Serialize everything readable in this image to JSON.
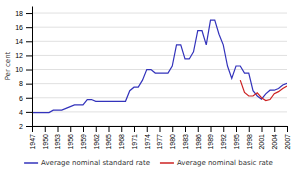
{
  "chart_data": {
    "type": "line",
    "ylabel": "Per cent",
    "series": [
      {
        "name": "Average nominal standard rate",
        "color": "#3333bb",
        "x": [
          1947,
          1948,
          1949,
          1950,
          1951,
          1952,
          1953,
          1954,
          1955,
          1956,
          1957,
          1958,
          1959,
          1960,
          1961,
          1962,
          1963,
          1964,
          1965,
          1966,
          1967,
          1968,
          1969,
          1970,
          1971,
          1972,
          1973,
          1974,
          1975,
          1976,
          1977,
          1978,
          1979,
          1980,
          1981,
          1982,
          1983,
          1984,
          1985,
          1986,
          1987,
          1988,
          1989,
          1990,
          1991,
          1992,
          1993,
          1994,
          1995,
          1996,
          1997,
          1998,
          1999,
          2000,
          2001,
          2002,
          2003,
          2004,
          2005,
          2006,
          2007
        ],
        "values": [
          3.9,
          3.9,
          3.9,
          3.9,
          3.9,
          4.25,
          4.25,
          4.25,
          4.5,
          4.75,
          5.0,
          5.0,
          5.0,
          5.75,
          5.75,
          5.5,
          5.5,
          5.5,
          5.5,
          5.5,
          5.5,
          5.5,
          5.5,
          7.0,
          7.5,
          7.5,
          8.5,
          10.0,
          10.0,
          9.5,
          9.5,
          9.5,
          9.5,
          10.5,
          13.5,
          13.5,
          11.5,
          11.5,
          12.5,
          15.5,
          15.5,
          13.5,
          17.0,
          17.0,
          15.0,
          13.5,
          10.5,
          8.75,
          10.5,
          10.5,
          9.5,
          9.5,
          7.0,
          6.25,
          5.8,
          6.55,
          7.07,
          7.07,
          7.32,
          7.8,
          8.05
        ]
      },
      {
        "name": "Average nominal basic rate",
        "color": "#cc2222",
        "x": [
          1996,
          1997,
          1998,
          1999,
          2000,
          2001,
          2002,
          2003,
          2004,
          2005,
          2006,
          2007
        ],
        "values": [
          8.5,
          6.75,
          6.25,
          6.25,
          6.7,
          6.0,
          5.6,
          5.75,
          6.57,
          6.87,
          7.32,
          7.65
        ]
      }
    ],
    "xlim": [
      1947,
      2007
    ],
    "xticks": [
      1947,
      1950,
      1953,
      1956,
      1959,
      1962,
      1965,
      1968,
      1971,
      1974,
      1977,
      1980,
      1983,
      1986,
      1989,
      1992,
      1995,
      1998,
      2001,
      2004,
      2007
    ],
    "ylim": [
      2,
      19
    ],
    "yticks": [
      2,
      4,
      6,
      8,
      10,
      12,
      14,
      16,
      18
    ],
    "grid": "y",
    "legend": "bottom"
  }
}
